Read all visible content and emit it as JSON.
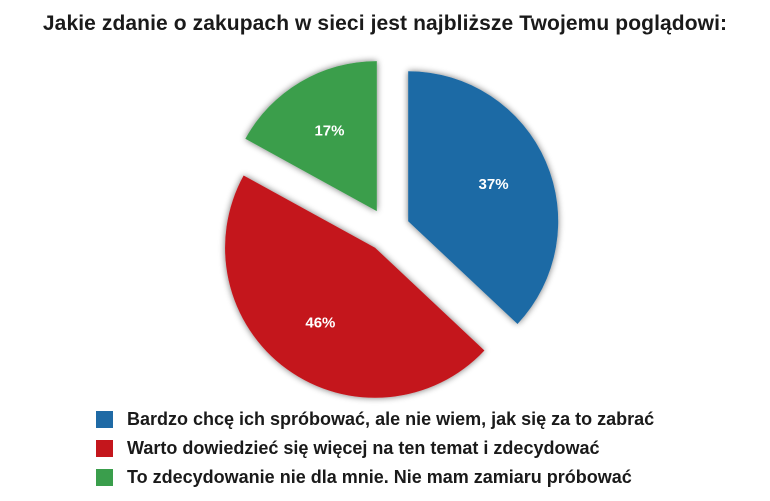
{
  "title": "Jakie zdanie o zakupach w sieci jest najbliższe Twojemu poglądowi:",
  "chart_data": {
    "type": "pie",
    "title": "Jakie zdanie o zakupach w sieci jest najbliższe Twojemu poglądowi:",
    "labels": [
      "Bardzo chcę ich spróbować, ale nie wiem, jak się za to zabrać",
      "Warto dowiedzieć się więcej na ten temat i zdecydować",
      "To zdecydowanie nie dla mnie. Nie mam zamiaru próbować"
    ],
    "values": [
      37,
      46,
      17
    ],
    "value_labels": [
      "37%",
      "46%",
      "17%"
    ],
    "colors": [
      "#1f6aa5",
      "#c4161c",
      "#3a9e4c"
    ],
    "exploded": true,
    "legend_position": "bottom"
  }
}
